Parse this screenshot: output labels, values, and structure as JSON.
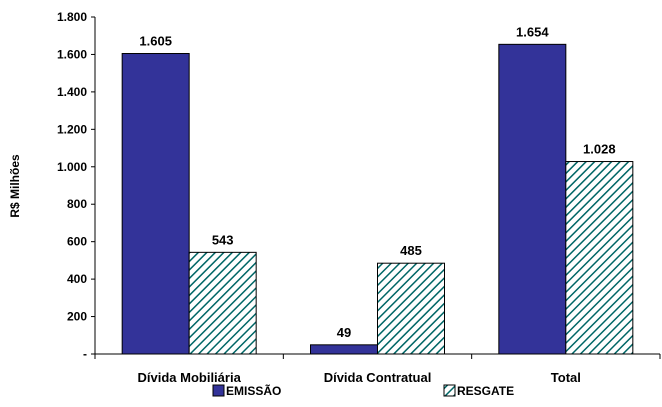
{
  "chart_data": {
    "type": "bar",
    "title": "",
    "xlabel": "",
    "ylabel": "R$ Milhões",
    "ylim": [
      0,
      1800
    ],
    "y_ticks": [
      {
        "value": 0,
        "label": "-"
      },
      {
        "value": 200,
        "label": "200"
      },
      {
        "value": 400,
        "label": "400"
      },
      {
        "value": 600,
        "label": "600"
      },
      {
        "value": 800,
        "label": "800"
      },
      {
        "value": 1000,
        "label": "1.000"
      },
      {
        "value": 1200,
        "label": "1.200"
      },
      {
        "value": 1400,
        "label": "1.400"
      },
      {
        "value": 1600,
        "label": "1.600"
      },
      {
        "value": 1800,
        "label": "1.800"
      }
    ],
    "categories": [
      "Dívida Mobiliária",
      "Dívida Contratual",
      "Total"
    ],
    "series": [
      {
        "name": "EMISSÃO",
        "values": [
          1605,
          49,
          1654
        ],
        "labels": [
          "1.605",
          "49",
          "1.654"
        ],
        "color": "#333399",
        "pattern": "solid"
      },
      {
        "name": "RESGATE",
        "values": [
          543,
          485,
          1028
        ],
        "labels": [
          "543",
          "485",
          "1.028"
        ],
        "color": "#006666",
        "pattern": "diagonal-hatch"
      }
    ],
    "grid": false,
    "legend_position": "bottom"
  }
}
